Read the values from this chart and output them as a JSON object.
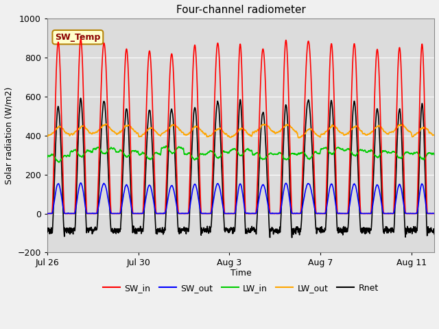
{
  "title": "Four-channel radiometer",
  "xlabel": "Time",
  "ylabel": "Solar radiation (W/m2)",
  "ylim": [
    -200,
    1000
  ],
  "plot_bg": "#dcdcdc",
  "fig_bg": "#f0f0f0",
  "grid_color": "#ffffff",
  "num_days": 17,
  "pts_per_day": 144,
  "channels": {
    "SW_in": {
      "color": "#ff0000",
      "lw": 1.2
    },
    "SW_out": {
      "color": "#0000ff",
      "lw": 1.2
    },
    "LW_in": {
      "color": "#00cc00",
      "lw": 1.2
    },
    "LW_out": {
      "color": "#ffa500",
      "lw": 1.2
    },
    "Rnet": {
      "color": "#000000",
      "lw": 1.2
    }
  },
  "xtick_positions": [
    0,
    4,
    8,
    12,
    16
  ],
  "xtick_labels": [
    "Jul 26",
    "Jul 30",
    "Aug 3",
    "Aug 7",
    "Aug 11"
  ],
  "ytick_positions": [
    -200,
    0,
    200,
    400,
    600,
    800,
    1000
  ],
  "legend_entries": [
    "SW_in",
    "SW_out",
    "LW_in",
    "LW_out",
    "Rnet"
  ],
  "legend_colors": [
    "#ff0000",
    "#0000ff",
    "#00cc00",
    "#ffa500",
    "#000000"
  ],
  "annotation_text": "SW_Temp",
  "sw_in_peaks": [
    880,
    895,
    875,
    845,
    835,
    820,
    865,
    875,
    870,
    845,
    890,
    885,
    872,
    872,
    843,
    852,
    870
  ]
}
